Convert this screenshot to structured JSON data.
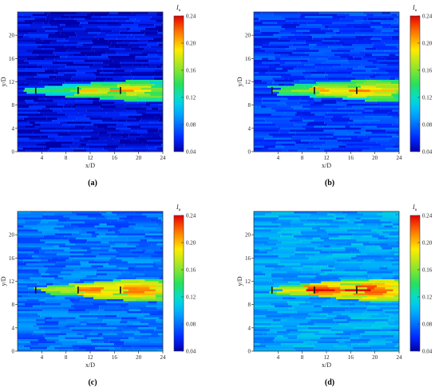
{
  "figure": {
    "captions": [
      "(a)",
      "(b)",
      "(c)",
      "(d)"
    ]
  },
  "chart_data": [
    {
      "type": "heatmap",
      "panel": "(a)",
      "xlabel": "x/D",
      "ylabel": "y/D",
      "xlim": [
        0,
        24
      ],
      "ylim": [
        0,
        24
      ],
      "xticks": [
        4,
        8,
        12,
        16,
        20,
        24
      ],
      "yticks": [
        0,
        4,
        8,
        12,
        16,
        20
      ],
      "colorbar": {
        "label": "I_u",
        "title_main": "I",
        "title_sub": "u",
        "ticks": [
          "0.04",
          "0.08",
          "0.12",
          "0.16",
          "0.20",
          "0.24"
        ],
        "range": [
          0.04,
          0.24
        ]
      },
      "ambient_intensity": 0.05,
      "wake_centerline_y": 10.5,
      "turbines_x": [
        3,
        10,
        17
      ],
      "turbine_rotor_span_y": [
        9.9,
        11.1
      ],
      "wake_peak_intensity": 0.15
    },
    {
      "type": "heatmap",
      "panel": "(b)",
      "xlabel": "x/D",
      "ylabel": "y/D",
      "xlim": [
        0,
        24
      ],
      "ylim": [
        0,
        24
      ],
      "xticks": [
        4,
        8,
        12,
        16,
        20,
        24
      ],
      "yticks": [
        0,
        4,
        8,
        12,
        16,
        20
      ],
      "colorbar": {
        "label": "I_u",
        "title_main": "I",
        "title_sub": "u",
        "ticks": [
          "0.04",
          "0.08",
          "0.12",
          "0.16",
          "0.20",
          "0.24"
        ],
        "range": [
          0.04,
          0.24
        ]
      },
      "ambient_intensity": 0.065,
      "wake_centerline_y": 10.5,
      "turbines_x": [
        3,
        10,
        17
      ],
      "turbine_rotor_span_y": [
        9.9,
        11.1
      ],
      "wake_peak_intensity": 0.16
    },
    {
      "type": "heatmap",
      "panel": "(c)",
      "xlabel": "x/D",
      "ylabel": "y/D",
      "xlim": [
        0,
        24
      ],
      "ylim": [
        0,
        24
      ],
      "xticks": [
        4,
        8,
        12,
        16,
        20,
        24
      ],
      "yticks": [
        0,
        4,
        8,
        12,
        16,
        20
      ],
      "colorbar": {
        "label": "I_u",
        "title_main": "I",
        "title_sub": "u",
        "ticks": [
          "0.04",
          "0.08",
          "0.12",
          "0.16",
          "0.20",
          "0.24"
        ],
        "range": [
          0.04,
          0.24
        ]
      },
      "ambient_intensity": 0.08,
      "wake_centerline_y": 10.5,
      "turbines_x": [
        3,
        10,
        17
      ],
      "turbine_rotor_span_y": [
        9.9,
        11.1
      ],
      "wake_peak_intensity": 0.18
    },
    {
      "type": "heatmap",
      "panel": "(d)",
      "xlabel": "x/D",
      "ylabel": "y/D",
      "xlim": [
        0,
        24
      ],
      "ylim": [
        0,
        24
      ],
      "xticks": [
        4,
        8,
        12,
        16,
        20,
        24
      ],
      "yticks": [
        0,
        4,
        8,
        12,
        16,
        20
      ],
      "colorbar": {
        "label": "I_u",
        "title_main": "I",
        "title_sub": "u",
        "ticks": [
          "0.04",
          "0.08",
          "0.12",
          "0.16",
          "0.20",
          "0.24"
        ],
        "range": [
          0.04,
          0.24
        ]
      },
      "ambient_intensity": 0.095,
      "wake_centerline_y": 10.5,
      "turbines_x": [
        3,
        10,
        17
      ],
      "turbine_rotor_span_y": [
        9.9,
        11.1
      ],
      "wake_peak_intensity": 0.19
    }
  ]
}
